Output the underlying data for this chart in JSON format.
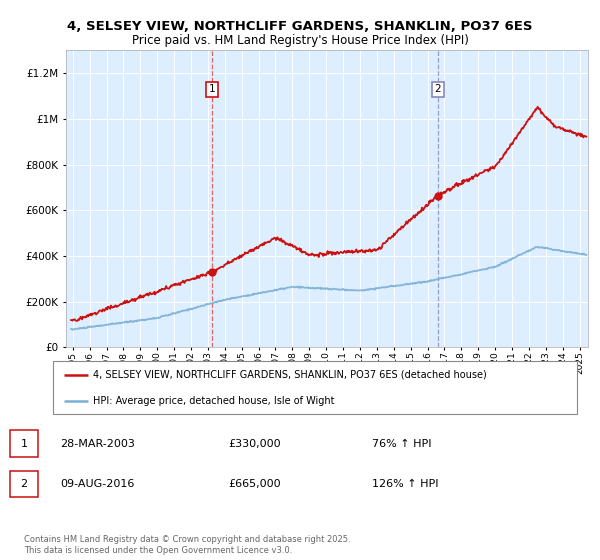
{
  "title_line1": "4, SELSEY VIEW, NORTHCLIFF GARDENS, SHANKLIN, PO37 6ES",
  "title_line2": "Price paid vs. HM Land Registry's House Price Index (HPI)",
  "sale1_price": 330000,
  "sale1_pct": "76% ↑ HPI",
  "sale1_display": "28-MAR-2003",
  "sale2_price": 665000,
  "sale2_pct": "126% ↑ HPI",
  "sale2_display": "09-AUG-2016",
  "hpi_color": "#7bafd4",
  "price_color": "#cc1111",
  "vline1_color": "#dd4444",
  "vline2_color": "#8888bb",
  "legend_label_price": "4, SELSEY VIEW, NORTHCLIFF GARDENS, SHANKLIN, PO37 6ES (detached house)",
  "legend_label_hpi": "HPI: Average price, detached house, Isle of Wight",
  "footer": "Contains HM Land Registry data © Crown copyright and database right 2025.\nThis data is licensed under the Open Government Licence v3.0.",
  "ylim": [
    0,
    1300000
  ],
  "xlim_start": 1994.6,
  "xlim_end": 2025.5,
  "yticks": [
    0,
    200000,
    400000,
    600000,
    800000,
    1000000,
    1200000
  ],
  "ytick_labels": [
    "£0",
    "£200K",
    "£400K",
    "£600K",
    "£800K",
    "£1M",
    "£1.2M"
  ],
  "plot_bg_color": "#ddeeff",
  "sale1_x": 2003.24,
  "sale2_x": 2016.61
}
